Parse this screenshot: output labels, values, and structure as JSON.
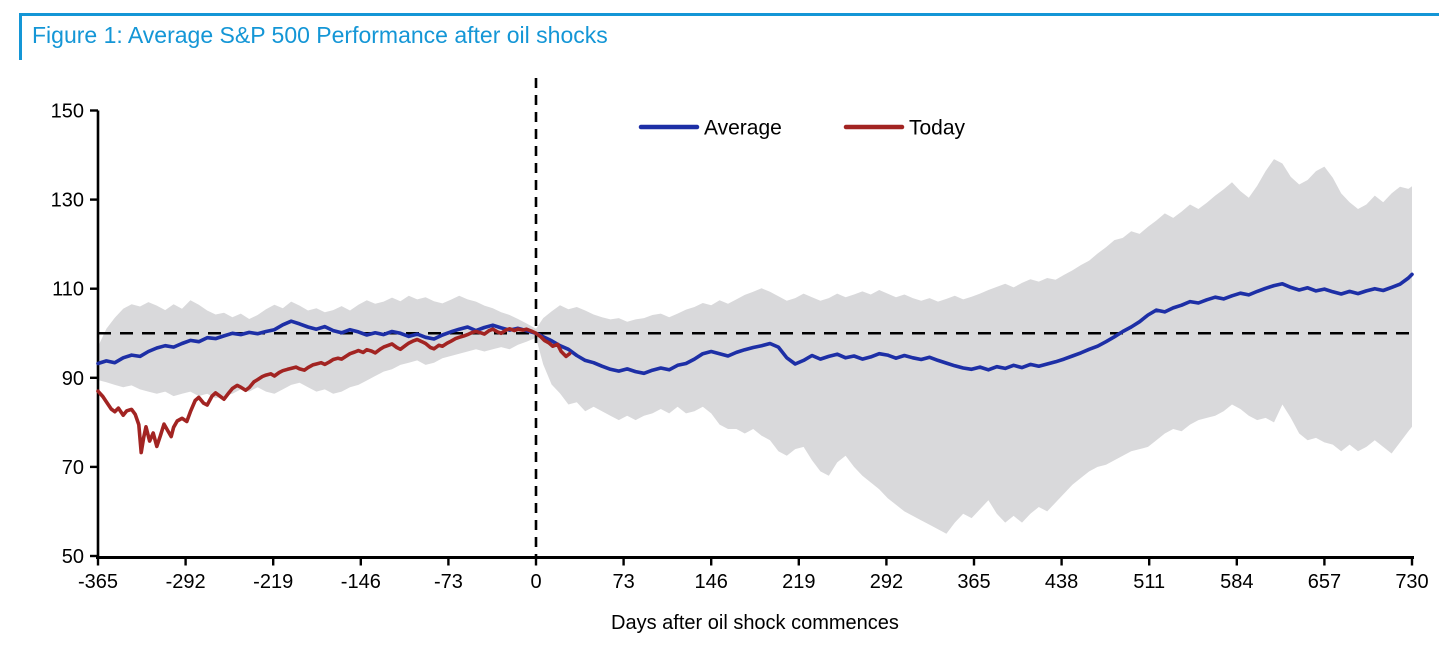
{
  "figure": {
    "title": "Figure 1: Average S&P 500 Performance after oil shocks",
    "accent_color": "#1496d6",
    "text_color": "#000000",
    "background_color": "#ffffff"
  },
  "chart_data": {
    "type": "line",
    "title": "Figure 1: Average S&P 500 Performance after oil shocks",
    "xlabel": "Days after oil shock commences",
    "ylabel": "",
    "xlim": [
      -365,
      730
    ],
    "ylim": [
      50,
      150
    ],
    "x_ticks": [
      -365,
      -292,
      -219,
      -146,
      -73,
      0,
      73,
      146,
      219,
      292,
      365,
      438,
      511,
      584,
      657,
      730
    ],
    "y_ticks": [
      50,
      70,
      90,
      110,
      130,
      150
    ],
    "grid": false,
    "legend_position": "top-center",
    "reference_lines": {
      "horizontal_y": 100,
      "vertical_x": 0,
      "style": "dashed",
      "color": "#000000"
    },
    "band": {
      "name": "episode-range-band",
      "color": "#d9d9db",
      "x": [
        -365,
        -358,
        -351,
        -344,
        -337,
        -330,
        -323,
        -316,
        -309,
        -302,
        -295,
        -288,
        -281,
        -274,
        -267,
        -260,
        -253,
        -246,
        -239,
        -232,
        -225,
        -218,
        -211,
        -204,
        -197,
        -190,
        -183,
        -176,
        -169,
        -162,
        -155,
        -148,
        -141,
        -134,
        -127,
        -120,
        -113,
        -106,
        -99,
        -92,
        -85,
        -78,
        -71,
        -64,
        -57,
        -50,
        -43,
        -36,
        -29,
        -22,
        -15,
        -8,
        0,
        6,
        13,
        20,
        27,
        34,
        41,
        48,
        55,
        62,
        69,
        76,
        83,
        90,
        97,
        104,
        111,
        118,
        125,
        132,
        139,
        146,
        153,
        160,
        167,
        174,
        181,
        188,
        195,
        202,
        209,
        216,
        223,
        230,
        237,
        244,
        251,
        258,
        265,
        272,
        279,
        286,
        293,
        300,
        307,
        314,
        321,
        328,
        335,
        342,
        349,
        356,
        363,
        370,
        377,
        384,
        391,
        398,
        405,
        412,
        419,
        426,
        433,
        440,
        447,
        454,
        461,
        468,
        475,
        482,
        489,
        496,
        503,
        510,
        517,
        524,
        531,
        538,
        545,
        552,
        559,
        566,
        573,
        580,
        587,
        594,
        601,
        608,
        615,
        622,
        629,
        636,
        643,
        650,
        657,
        664,
        671,
        678,
        685,
        692,
        699,
        706,
        713,
        720,
        727,
        730
      ],
      "upper": [
        97.0,
        101.0,
        103.5,
        105.5,
        106.5,
        106.0,
        107.0,
        106.2,
        105.2,
        106.5,
        105.5,
        107.4,
        106.4,
        105.1,
        104.2,
        104.6,
        103.6,
        104.4,
        103.2,
        104.1,
        105.4,
        106.4,
        105.6,
        107.1,
        106.2,
        105.1,
        105.6,
        104.7,
        105.2,
        106.1,
        105.1,
        106.4,
        107.4,
        106.6,
        107.1,
        108.0,
        107.2,
        108.4,
        107.6,
        108.1,
        107.2,
        106.7,
        107.5,
        108.4,
        107.6,
        107.1,
        106.2,
        105.6,
        104.7,
        104.1,
        103.2,
        102.2,
        101.0,
        103.4,
        104.9,
        106.3,
        105.4,
        105.9,
        105.1,
        104.2,
        103.6,
        103.1,
        103.4,
        102.6,
        103.1,
        103.4,
        104.1,
        104.4,
        103.6,
        104.4,
        105.3,
        105.9,
        106.8,
        106.3,
        107.4,
        106.6,
        107.6,
        108.6,
        109.3,
        110.1,
        109.3,
        108.3,
        107.3,
        107.9,
        108.9,
        108.1,
        107.3,
        107.9,
        108.9,
        108.1,
        108.7,
        109.4,
        108.7,
        109.7,
        108.9,
        108.1,
        108.7,
        107.9,
        107.3,
        107.9,
        107.1,
        107.7,
        108.4,
        107.6,
        108.2,
        108.9,
        109.7,
        110.4,
        111.1,
        110.3,
        111.3,
        112.1,
        111.6,
        112.4,
        112.0,
        113.1,
        114.1,
        115.3,
        116.3,
        117.9,
        119.3,
        120.9,
        121.4,
        122.9,
        122.3,
        123.9,
        125.3,
        126.9,
        125.9,
        127.3,
        128.9,
        127.9,
        129.3,
        130.9,
        132.3,
        133.9,
        131.9,
        130.4,
        133.1,
        136.4,
        139.1,
        138.1,
        135.1,
        133.4,
        134.4,
        136.4,
        137.4,
        134.9,
        131.4,
        129.4,
        127.9,
        128.9,
        130.9,
        129.4,
        131.4,
        132.9,
        132.4,
        133.0
      ],
      "lower": [
        89.5,
        89.0,
        88.4,
        87.9,
        88.3,
        87.4,
        86.9,
        86.4,
        86.9,
        85.9,
        86.4,
        86.9,
        85.9,
        86.4,
        85.4,
        85.9,
        86.4,
        87.4,
        86.9,
        87.9,
        86.9,
        86.4,
        87.4,
        88.4,
        88.9,
        87.9,
        86.9,
        87.4,
        86.4,
        86.9,
        87.9,
        88.4,
        89.4,
        90.4,
        91.4,
        91.9,
        92.9,
        93.4,
        93.9,
        92.9,
        93.4,
        94.4,
        94.9,
        95.4,
        95.9,
        96.4,
        95.9,
        96.4,
        96.9,
        96.4,
        97.4,
        98.1,
        99.0,
        93.0,
        88.5,
        86.5,
        84.0,
        84.5,
        82.5,
        83.5,
        82.5,
        81.5,
        80.5,
        81.5,
        80.5,
        81.5,
        82.0,
        83.0,
        82.0,
        83.5,
        82.0,
        82.5,
        83.5,
        82.0,
        79.5,
        78.5,
        78.5,
        77.5,
        78.5,
        77.0,
        76.0,
        73.5,
        72.5,
        74.0,
        74.5,
        71.5,
        69.0,
        68.0,
        71.0,
        72.5,
        70.0,
        68.0,
        66.5,
        65.0,
        63.0,
        61.5,
        60.0,
        59.0,
        58.0,
        57.0,
        56.0,
        55.0,
        57.5,
        59.5,
        58.5,
        60.5,
        62.5,
        59.5,
        57.5,
        59.0,
        57.5,
        59.5,
        61.0,
        60.0,
        62.0,
        64.0,
        66.0,
        67.5,
        69.0,
        70.0,
        70.5,
        71.5,
        72.5,
        73.5,
        74.0,
        74.5,
        76.0,
        77.5,
        78.5,
        78.0,
        79.5,
        80.5,
        81.0,
        81.5,
        82.5,
        84.0,
        83.0,
        81.5,
        80.5,
        81.0,
        80.0,
        84.0,
        81.0,
        77.5,
        76.0,
        76.5,
        75.5,
        75.0,
        73.5,
        75.0,
        73.5,
        74.5,
        76.0,
        74.5,
        73.0,
        75.5,
        78.0,
        79.0
      ]
    },
    "series": [
      {
        "name": "Average",
        "color": "#1d2fa6",
        "x": [
          -365,
          -358,
          -351,
          -344,
          -337,
          -330,
          -323,
          -316,
          -309,
          -302,
          -295,
          -288,
          -281,
          -274,
          -267,
          -260,
          -253,
          -246,
          -239,
          -232,
          -225,
          -218,
          -211,
          -204,
          -197,
          -190,
          -183,
          -176,
          -169,
          -162,
          -155,
          -148,
          -141,
          -134,
          -127,
          -120,
          -113,
          -106,
          -99,
          -92,
          -85,
          -78,
          -71,
          -64,
          -57,
          -50,
          -43,
          -36,
          -29,
          -22,
          -15,
          -8,
          0,
          6,
          13,
          20,
          27,
          34,
          41,
          48,
          55,
          62,
          69,
          76,
          83,
          90,
          97,
          104,
          111,
          118,
          125,
          132,
          139,
          146,
          153,
          160,
          167,
          174,
          181,
          188,
          195,
          202,
          209,
          216,
          223,
          230,
          237,
          244,
          251,
          258,
          265,
          272,
          279,
          286,
          293,
          300,
          307,
          314,
          321,
          328,
          335,
          342,
          349,
          356,
          363,
          370,
          377,
          384,
          391,
          398,
          405,
          412,
          419,
          426,
          433,
          440,
          447,
          454,
          461,
          468,
          475,
          482,
          489,
          496,
          503,
          510,
          517,
          524,
          531,
          538,
          545,
          552,
          559,
          566,
          573,
          580,
          587,
          594,
          601,
          608,
          615,
          622,
          629,
          636,
          643,
          650,
          657,
          664,
          671,
          678,
          685,
          692,
          699,
          706,
          713,
          720,
          727,
          730
        ],
        "values": [
          93.2,
          93.8,
          93.4,
          94.5,
          95.1,
          94.8,
          95.9,
          96.7,
          97.2,
          96.9,
          97.7,
          98.4,
          98.1,
          99.0,
          98.8,
          99.4,
          100.0,
          99.7,
          100.2,
          99.9,
          100.4,
          100.8,
          101.9,
          102.7,
          102.1,
          101.4,
          100.9,
          101.5,
          100.6,
          100.1,
          100.8,
          100.3,
          99.6,
          100.1,
          99.7,
          100.4,
          100.0,
          99.3,
          99.8,
          99.1,
          98.7,
          99.6,
          100.3,
          100.9,
          101.4,
          100.6,
          101.3,
          101.8,
          101.2,
          100.7,
          101.1,
          100.6,
          100.0,
          99.2,
          98.3,
          97.2,
          96.4,
          95.0,
          93.9,
          93.4,
          92.6,
          91.9,
          91.5,
          92.0,
          91.4,
          91.0,
          91.7,
          92.2,
          91.8,
          92.8,
          93.2,
          94.2,
          95.4,
          95.9,
          95.4,
          94.9,
          95.7,
          96.3,
          96.8,
          97.2,
          97.7,
          96.9,
          94.5,
          93.1,
          93.9,
          95.0,
          94.2,
          94.8,
          95.3,
          94.5,
          94.9,
          94.2,
          94.7,
          95.4,
          95.1,
          94.4,
          95.0,
          94.5,
          94.1,
          94.6,
          93.9,
          93.3,
          92.7,
          92.2,
          91.9,
          92.4,
          91.8,
          92.5,
          92.1,
          92.8,
          92.3,
          93.0,
          92.6,
          93.1,
          93.6,
          94.2,
          94.9,
          95.6,
          96.4,
          97.1,
          98.1,
          99.2,
          100.4,
          101.4,
          102.6,
          104.1,
          105.2,
          104.8,
          105.7,
          106.3,
          107.1,
          106.8,
          107.5,
          108.1,
          107.7,
          108.4,
          109.0,
          108.6,
          109.4,
          110.1,
          110.7,
          111.1,
          110.3,
          109.7,
          110.2,
          109.5,
          109.9,
          109.3,
          108.8,
          109.4,
          108.9,
          109.5,
          110.0,
          109.6,
          110.3,
          111.0,
          112.4,
          113.2
        ]
      },
      {
        "name": "Today",
        "color": "#a22422",
        "x": [
          -365,
          -361,
          -358,
          -354,
          -351,
          -348,
          -344,
          -341,
          -337,
          -334,
          -331,
          -329,
          -327,
          -325,
          -322,
          -319,
          -316,
          -313,
          -310,
          -307,
          -304,
          -302,
          -299,
          -295,
          -291,
          -288,
          -284,
          -281,
          -277,
          -274,
          -270,
          -267,
          -263,
          -260,
          -256,
          -253,
          -249,
          -246,
          -242,
          -239,
          -235,
          -232,
          -228,
          -225,
          -221,
          -218,
          -214,
          -211,
          -207,
          -204,
          -200,
          -197,
          -193,
          -190,
          -186,
          -183,
          -179,
          -176,
          -172,
          -169,
          -165,
          -162,
          -158,
          -155,
          -151,
          -148,
          -144,
          -141,
          -137,
          -134,
          -130,
          -127,
          -123,
          -120,
          -116,
          -113,
          -109,
          -106,
          -102,
          -99,
          -95,
          -92,
          -88,
          -85,
          -81,
          -78,
          -74,
          -71,
          -67,
          -64,
          -60,
          -57,
          -53,
          -50,
          -46,
          -43,
          -39,
          -36,
          -32,
          -29,
          -25,
          -22,
          -18,
          -15,
          -11,
          -8,
          -4,
          0,
          4,
          7,
          11,
          14,
          18,
          21,
          25,
          28
        ],
        "values": [
          87.0,
          85.8,
          84.6,
          83.0,
          82.4,
          83.2,
          81.6,
          82.6,
          82.9,
          81.8,
          79.5,
          73.2,
          76.5,
          79.0,
          75.8,
          77.6,
          74.6,
          77.0,
          79.6,
          78.2,
          76.8,
          78.9,
          80.3,
          80.9,
          80.2,
          82.4,
          84.9,
          85.6,
          84.3,
          83.9,
          85.9,
          86.6,
          85.8,
          85.2,
          86.6,
          87.6,
          88.3,
          87.9,
          87.2,
          87.8,
          89.1,
          89.6,
          90.3,
          90.6,
          90.9,
          90.4,
          91.2,
          91.6,
          91.9,
          92.1,
          92.4,
          92.0,
          91.7,
          92.3,
          92.9,
          93.1,
          93.4,
          93.0,
          93.6,
          94.1,
          94.4,
          94.2,
          94.9,
          95.4,
          95.8,
          96.1,
          95.7,
          96.3,
          96.0,
          95.6,
          96.4,
          96.9,
          97.3,
          97.6,
          96.8,
          96.4,
          97.2,
          97.8,
          98.3,
          98.6,
          98.1,
          97.7,
          96.8,
          96.5,
          97.3,
          97.1,
          97.8,
          98.2,
          98.8,
          99.1,
          99.4,
          99.7,
          100.2,
          100.4,
          100.1,
          99.8,
          100.6,
          100.9,
          100.3,
          100.0,
          100.7,
          101.0,
          100.6,
          100.9,
          100.7,
          100.9,
          100.5,
          100.0,
          99.2,
          98.4,
          97.8,
          97.1,
          97.5,
          95.9,
          94.8,
          95.4
        ]
      }
    ]
  },
  "legend": {
    "items": [
      {
        "label": "Average",
        "color": "#1d2fa6"
      },
      {
        "label": "Today",
        "color": "#a22422"
      }
    ]
  }
}
